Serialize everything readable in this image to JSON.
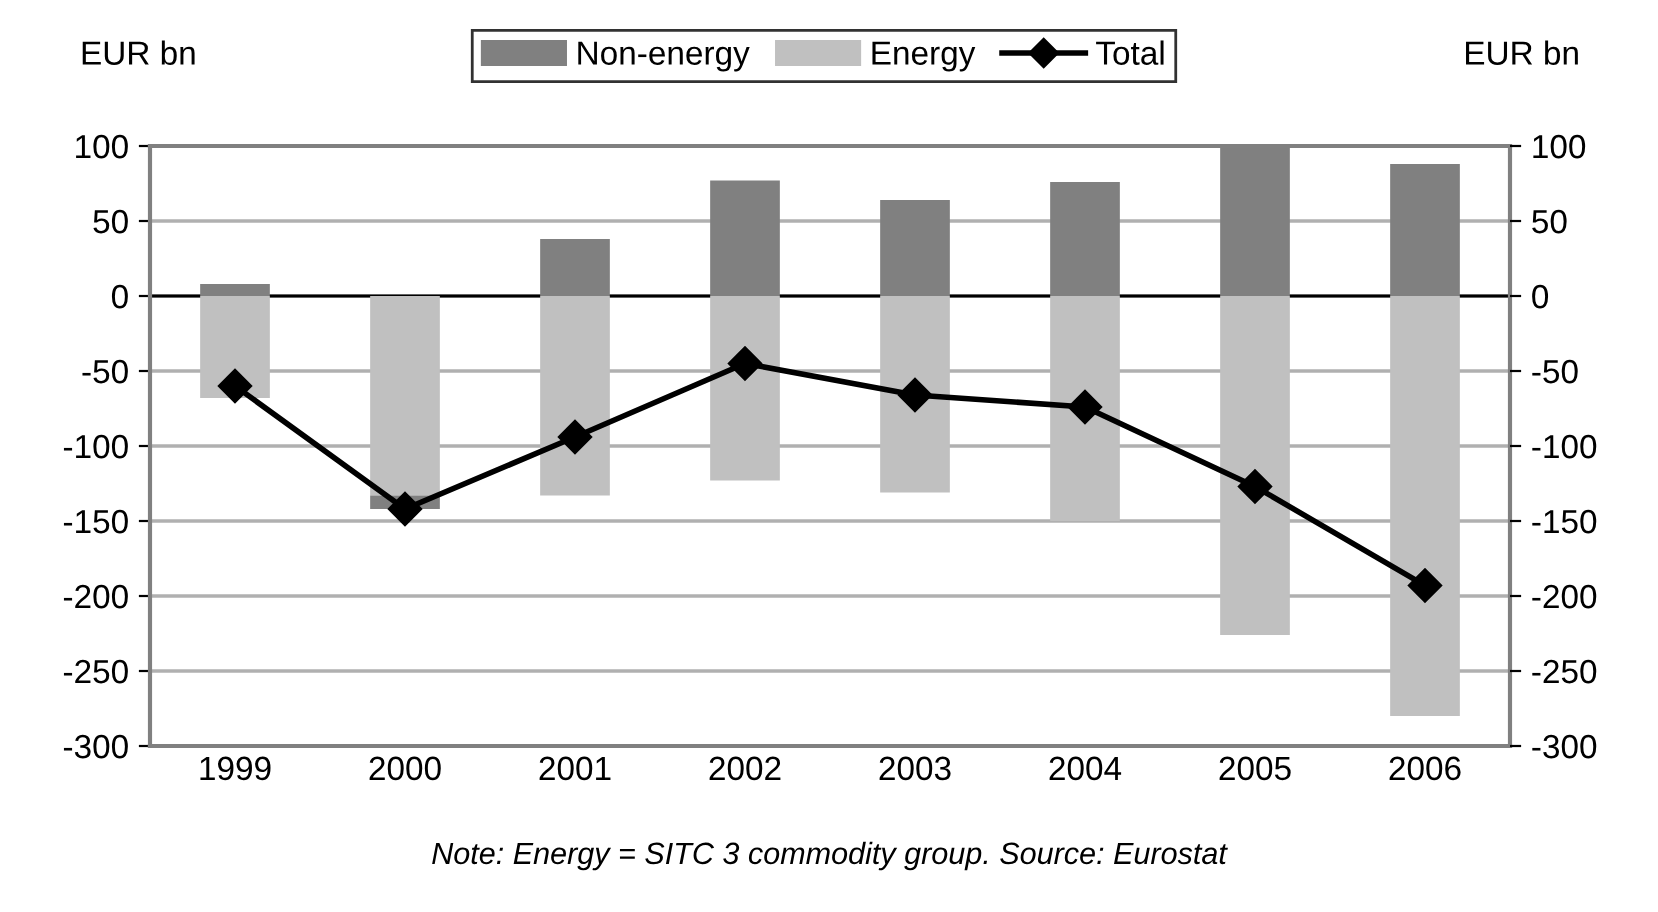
{
  "chart_data": {
    "type": "bar",
    "stacked": true,
    "ylabel": "EUR bn",
    "y2label": "EUR bn",
    "categories": [
      "1999",
      "2000",
      "2001",
      "2002",
      "2003",
      "2004",
      "2005",
      "2006"
    ],
    "series": [
      {
        "name": "Energy",
        "color": "#c0c0c0",
        "values": [
          -68,
          -133,
          -133,
          -123,
          -131,
          -150,
          -226,
          -280
        ]
      },
      {
        "name": "Non-energy",
        "color": "#808080",
        "values": [
          8,
          -9,
          38,
          77,
          64,
          76,
          100,
          88
        ]
      },
      {
        "name": "Total",
        "type": "line",
        "color": "#000000",
        "marker": "diamond",
        "values": [
          -60,
          -142,
          -94,
          -45,
          -66,
          -74,
          -127,
          -193
        ]
      }
    ],
    "ylim": [
      -300,
      100
    ],
    "yticks": [
      -300,
      -250,
      -200,
      -150,
      -100,
      -50,
      0,
      50,
      100
    ],
    "y2lim": [
      -300,
      100
    ],
    "y2ticks": [
      -300,
      -250,
      -200,
      -150,
      -100,
      -50,
      0,
      50,
      100
    ],
    "grid": "y",
    "legend": "top",
    "annotations": [
      "Note: Energy = SITC 3 commodity group. Source: Eurostat"
    ]
  }
}
